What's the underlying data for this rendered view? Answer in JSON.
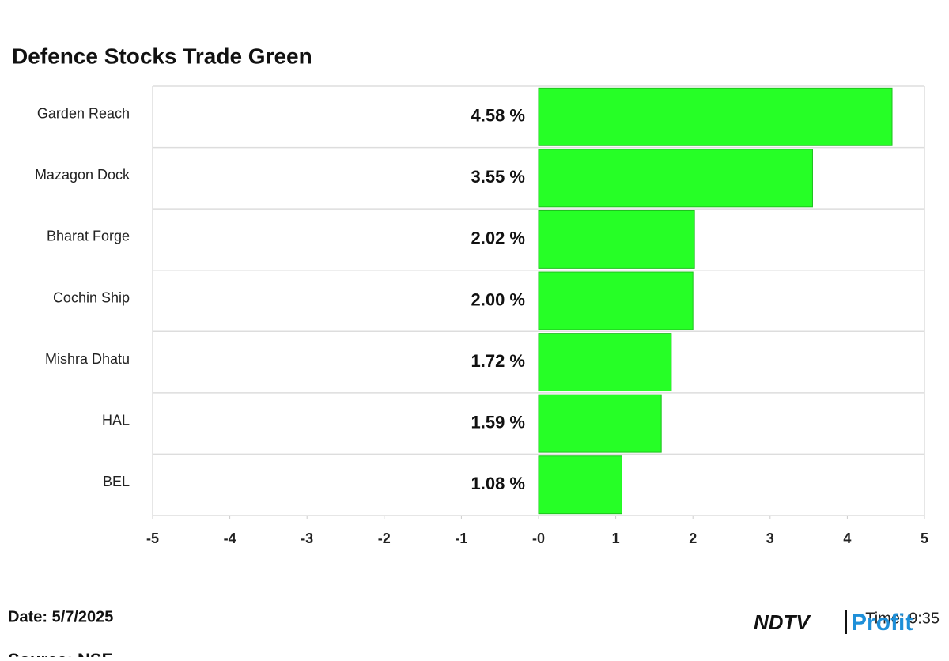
{
  "chart_data": {
    "type": "barh",
    "title": "Defence Stocks Trade Green",
    "categories": [
      "Garden Reach",
      "Mazagon Dock",
      "Bharat Forge",
      "Cochin Ship",
      "Mishra Dhatu",
      "HAL",
      "BEL"
    ],
    "values": [
      4.58,
      3.55,
      2.02,
      2.0,
      1.72,
      1.59,
      1.08
    ],
    "value_labels": [
      "4.58 %",
      "3.55 %",
      "2.02 %",
      "2.00 %",
      "1.72 %",
      "1.59 %",
      "1.08 %"
    ],
    "color": "#26ff26",
    "xlim": [
      -5,
      5
    ],
    "xticks": [
      -5,
      -4,
      -3,
      -2,
      -1,
      {
        "value": 0,
        "label": "-0"
      },
      1,
      2,
      3,
      4,
      5
    ],
    "grid": false
  },
  "footer": {
    "date": "Date: 5/7/2025",
    "time": "Time: 9:35",
    "source": "Source: NSE",
    "logo": "NDTV",
    "logo_accent": "Profit"
  }
}
